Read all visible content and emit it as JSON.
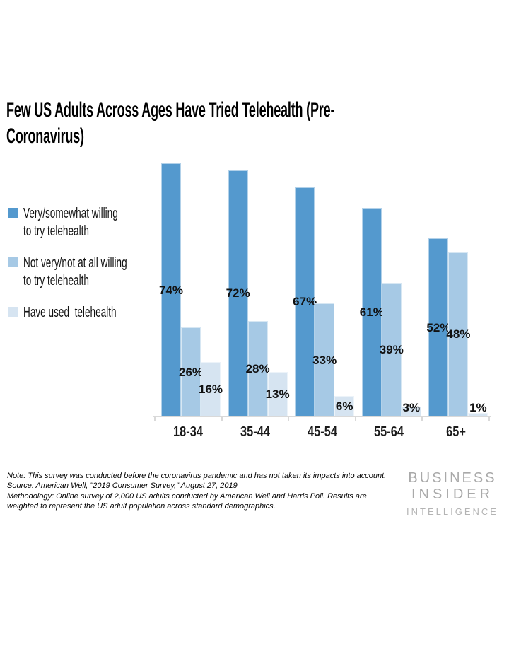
{
  "title": {
    "full": "Few US Adults Across Ages Have Tried Telehealth (Pre-Coronavirus)",
    "line1": "Few US Adults Across Ages Have Tried Telehealth (Pre-",
    "line2": "Coronavirus)"
  },
  "legend": {
    "items": [
      {
        "label": "Very/somewhat willing to try telehealth",
        "lines": [
          "Very/somewhat willing",
          "to try telehealth"
        ],
        "color": "#5499CE"
      },
      {
        "label": "Not very/not at all willing to try telehealth",
        "lines": [
          "Not very/not at all willing",
          "to try telehealth"
        ],
        "color": "#A6C9E5"
      },
      {
        "label": "Have used telehealth",
        "lines": [
          "Have used  telehealth"
        ],
        "color": "#D6E4F1"
      }
    ]
  },
  "chart_data": {
    "type": "bar",
    "title": "Few US Adults Across Ages Have Tried Telehealth (Pre-Coronavirus)",
    "categories": [
      "18-34",
      "35-44",
      "45-54",
      "55-64",
      "65+"
    ],
    "series": [
      {
        "name": "Very/somewhat willing to try telehealth",
        "color": "#5499CE",
        "values": [
          74,
          72,
          67,
          61,
          52
        ]
      },
      {
        "name": "Not very/not at all willing to try telehealth",
        "color": "#A6C9E5",
        "values": [
          26,
          28,
          33,
          39,
          48
        ]
      },
      {
        "name": "Have used telehealth",
        "color": "#D6E4F1",
        "values": [
          16,
          13,
          6,
          3,
          1
        ]
      }
    ],
    "value_suffix": "%",
    "data_labels": true,
    "xlabel": "",
    "ylabel": "",
    "grid": false,
    "y_axis_visible": false,
    "legend_position": "left",
    "axis_color": "#D9D9D9",
    "label_color": "#1A1A1A"
  },
  "notes": [
    "Note: This survey was conducted before the coronavirus pandemic and has not taken its impacts into account.",
    "Source: American Well, \"2019 Consumer Survey,\" August 27, 2019",
    "Methodology: Online survey of 2,000 US adults conducted by American Well and Harris Poll. Results are weighted to represent the US adult population across standard demographics."
  ],
  "logo": {
    "line1": "BUSINESS",
    "line2": "INSIDER",
    "line3": "INTELLIGENCE",
    "color": "#A9A9A9"
  }
}
